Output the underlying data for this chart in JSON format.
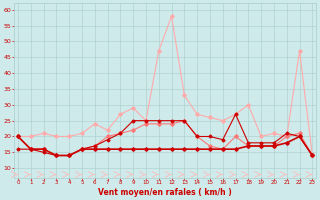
{
  "hours": [
    0,
    1,
    2,
    3,
    4,
    5,
    6,
    7,
    8,
    9,
    10,
    11,
    12,
    13,
    14,
    15,
    16,
    17,
    18,
    19,
    20,
    21,
    22,
    23
  ],
  "rafales_line": [
    20,
    20,
    21,
    20,
    20,
    21,
    24,
    22,
    27,
    29,
    25,
    47,
    58,
    33,
    27,
    26,
    25,
    27,
    30,
    20,
    21,
    20,
    47,
    14
  ],
  "wind_moyen_line": [
    20,
    16,
    16,
    14,
    14,
    16,
    17,
    20,
    21,
    22,
    24,
    24,
    24,
    25,
    20,
    17,
    16,
    20,
    17,
    17,
    17,
    20,
    21,
    14
  ],
  "wind_avg": [
    20,
    16,
    16,
    14,
    14,
    16,
    16,
    16,
    16,
    16,
    16,
    16,
    16,
    16,
    16,
    16,
    16,
    16,
    17,
    17,
    17,
    18,
    20,
    14
  ],
  "wind_gust": [
    16,
    16,
    15,
    14,
    14,
    16,
    17,
    19,
    21,
    25,
    25,
    25,
    25,
    25,
    20,
    20,
    19,
    27,
    18,
    18,
    18,
    21,
    20,
    14
  ],
  "direction_y": [
    8,
    8,
    8,
    8,
    8,
    8,
    8,
    8,
    8,
    8,
    8,
    8,
    8,
    8,
    8,
    8,
    8,
    8,
    8,
    8,
    8,
    8,
    8,
    8
  ],
  "bg_color": "#ceeaea",
  "grid_color": "#aacccc",
  "line_color_dark": "#cc0000",
  "line_color_light": "#ffaaaa",
  "line_color_medium": "#ff7777",
  "direction_color": "#ffbbbb",
  "xlabel": "Vent moyen/en rafales ( km/h )",
  "xlabel_color": "#cc0000",
  "tick_color": "#cc0000",
  "ylim": [
    7,
    62
  ],
  "yticks": [
    10,
    15,
    20,
    25,
    30,
    35,
    40,
    45,
    50,
    55,
    60
  ],
  "xticks": [
    0,
    1,
    2,
    3,
    4,
    5,
    6,
    7,
    8,
    9,
    10,
    11,
    12,
    13,
    14,
    15,
    16,
    17,
    18,
    19,
    20,
    21,
    22,
    23
  ]
}
